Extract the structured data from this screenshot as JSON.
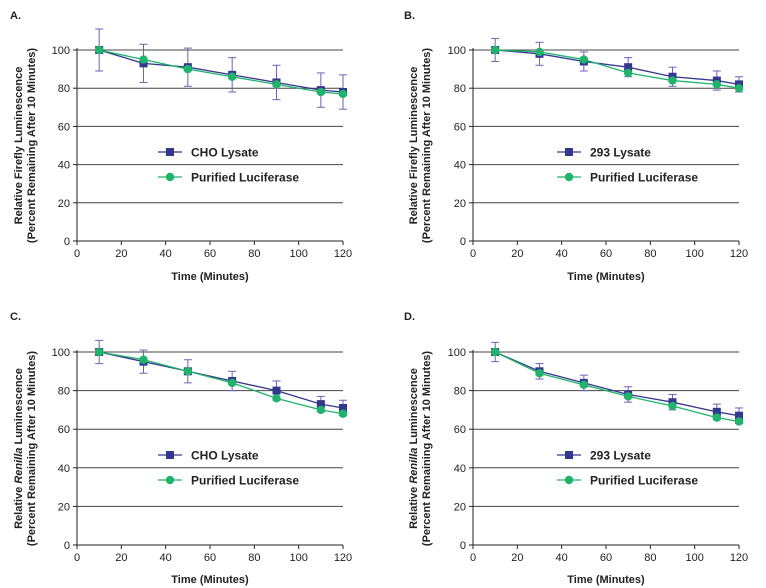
{
  "figure": {
    "panel_labels": [
      "A.",
      "B.",
      "C.",
      "D."
    ]
  },
  "colors": {
    "lysate": "#33388f",
    "purified": "#1fb36b",
    "error_bar": "#6b63b8",
    "axis": "#222222"
  },
  "chart_data": [
    {
      "type": "line",
      "panel_label": "A.",
      "ylabel_line1": "Relative Firefly Luminescence",
      "ylabel_line1_parts": [
        {
          "text": "Relative Firefly Luminescence",
          "italic": false
        }
      ],
      "ylabel_line2": "(Percent Remaining After 10 Minutes)",
      "xlabel": "Time (Minutes)",
      "xlim": [
        0,
        120
      ],
      "ylim": [
        0,
        100
      ],
      "xticks": [
        0,
        20,
        40,
        60,
        80,
        100,
        120
      ],
      "yticks": [
        0,
        20,
        40,
        60,
        80,
        100
      ],
      "grid": "horizontal",
      "legend_position": "center-right",
      "x": [
        10,
        30,
        50,
        70,
        90,
        110,
        120
      ],
      "series": [
        {
          "name": "CHO Lysate",
          "marker": "square",
          "values": [
            100,
            93,
            91,
            87,
            83,
            79,
            78
          ],
          "errors": [
            11,
            10,
            10,
            9,
            9,
            9,
            9
          ]
        },
        {
          "name": "Purified Luciferase",
          "marker": "circle",
          "values": [
            100,
            95,
            90,
            86,
            82,
            78,
            77
          ],
          "errors": [
            0,
            0,
            0,
            0,
            0,
            0,
            0
          ]
        }
      ]
    },
    {
      "type": "line",
      "panel_label": "B.",
      "ylabel_line1": "Relative Firefly Luminescence",
      "ylabel_line1_parts": [
        {
          "text": "Relative Firefly Luminescence",
          "italic": false
        }
      ],
      "ylabel_line2": "(Percent Remaining After 10 Minutes)",
      "xlabel": "Time (Minutes)",
      "xlim": [
        0,
        120
      ],
      "ylim": [
        0,
        100
      ],
      "xticks": [
        0,
        20,
        40,
        60,
        80,
        100,
        120
      ],
      "yticks": [
        0,
        20,
        40,
        60,
        80,
        100
      ],
      "grid": "horizontal",
      "legend_position": "center-right",
      "x": [
        10,
        30,
        50,
        70,
        90,
        110,
        120
      ],
      "series": [
        {
          "name": "293 Lysate",
          "marker": "square",
          "values": [
            100,
            98,
            94,
            91,
            86,
            84,
            82
          ],
          "errors": [
            6,
            6,
            5,
            5,
            5,
            5,
            4
          ]
        },
        {
          "name": "Purified Luciferase",
          "marker": "circle",
          "values": [
            100,
            99,
            95,
            88,
            84,
            82,
            80
          ],
          "errors": [
            0,
            0,
            0,
            0,
            0,
            0,
            0
          ]
        }
      ]
    },
    {
      "type": "line",
      "panel_label": "C.",
      "ylabel_line1": "Relative Renilla Luminescence",
      "ylabel_line1_parts": [
        {
          "text": "Relative ",
          "italic": false
        },
        {
          "text": "Renilla",
          "italic": true
        },
        {
          "text": " Luminescence",
          "italic": false
        }
      ],
      "ylabel_line2": "(Percent Remaining After 10 Minutes)",
      "xlabel": "Time (Minutes)",
      "xlim": [
        0,
        120
      ],
      "ylim": [
        0,
        100
      ],
      "xticks": [
        0,
        20,
        40,
        60,
        80,
        100,
        120
      ],
      "yticks": [
        0,
        20,
        40,
        60,
        80,
        100
      ],
      "grid": "horizontal",
      "legend_position": "center-right",
      "x": [
        10,
        30,
        50,
        70,
        90,
        110,
        120
      ],
      "series": [
        {
          "name": "CHO Lysate",
          "marker": "square",
          "values": [
            100,
            95,
            90,
            85,
            80,
            73,
            71
          ],
          "errors": [
            6,
            6,
            6,
            5,
            5,
            4,
            4
          ]
        },
        {
          "name": "Purified Luciferase",
          "marker": "circle",
          "values": [
            100,
            96,
            90,
            84,
            76,
            70,
            68
          ],
          "errors": [
            0,
            0,
            0,
            0,
            0,
            0,
            0
          ]
        }
      ]
    },
    {
      "type": "line",
      "panel_label": "D.",
      "ylabel_line1": "Relative Renilla Luminescence",
      "ylabel_line1_parts": [
        {
          "text": "Relative ",
          "italic": false
        },
        {
          "text": "Renilla",
          "italic": true
        },
        {
          "text": " Luminescence",
          "italic": false
        }
      ],
      "ylabel_line2": "(Percent Remaining After 10 Minutes)",
      "xlabel": "Time (Minutes)",
      "xlim": [
        0,
        120
      ],
      "ylim": [
        0,
        100
      ],
      "xticks": [
        0,
        20,
        40,
        60,
        80,
        100,
        120
      ],
      "yticks": [
        0,
        20,
        40,
        60,
        80,
        100
      ],
      "grid": "horizontal",
      "legend_position": "center-right",
      "x": [
        10,
        30,
        50,
        70,
        90,
        110,
        120
      ],
      "series": [
        {
          "name": "293 Lysate",
          "marker": "square",
          "values": [
            100,
            90,
            84,
            78,
            74,
            69,
            67
          ],
          "errors": [
            5,
            4,
            4,
            4,
            4,
            4,
            4
          ]
        },
        {
          "name": "Purified Luciferase",
          "marker": "circle",
          "values": [
            100,
            89,
            83,
            77,
            72,
            66,
            64
          ],
          "errors": [
            0,
            0,
            0,
            0,
            0,
            0,
            0
          ]
        }
      ]
    }
  ]
}
